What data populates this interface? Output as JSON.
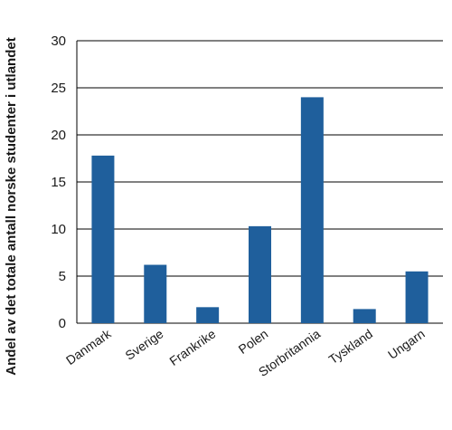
{
  "chart_data": {
    "type": "bar",
    "categories": [
      "Danmark",
      "Sverige",
      "Frankrike",
      "Polen",
      "Storbritannia",
      "Tyskland",
      "Ungarn"
    ],
    "values": [
      17.8,
      6.2,
      1.7,
      10.3,
      24.0,
      1.5,
      5.5
    ],
    "title": "",
    "xlabel": "",
    "ylabel": "Andel av det totale antall norske studenter i utlandet",
    "ylim": [
      0,
      30
    ],
    "yticks": [
      0,
      5,
      10,
      15,
      20,
      25,
      30
    ],
    "grid": "horizontal",
    "legend": "none",
    "colors": {
      "bar": "#1f5f9c",
      "grid": "#000000"
    }
  }
}
